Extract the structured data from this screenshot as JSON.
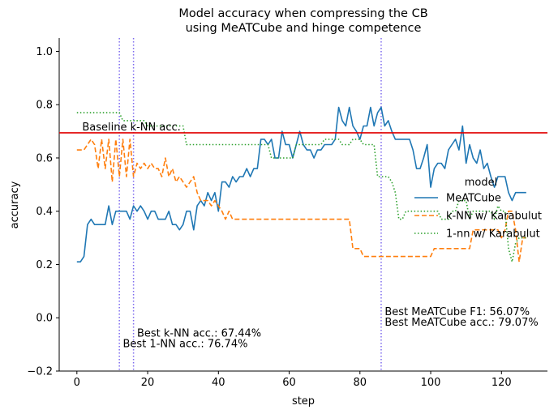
{
  "chart_data": {
    "type": "line",
    "title_line1": "Model accuracy when compressing the CB",
    "title_line2": "using MeATCube and hinge competence",
    "xlabel": "step",
    "ylabel": "accuracy",
    "xlim": [
      -5,
      133
    ],
    "ylim": [
      -0.2,
      1.05
    ],
    "xticks": [
      0,
      20,
      40,
      60,
      80,
      100,
      120
    ],
    "yticks": [
      -0.2,
      0.0,
      0.2,
      0.4,
      0.6,
      0.8,
      1.0
    ],
    "ytick_labels": [
      "−0.2",
      "0.0",
      "0.2",
      "0.4",
      "0.6",
      "0.8",
      "1.0"
    ],
    "grid": false,
    "legend": {
      "title": "model",
      "placement": "center-right",
      "entries": [
        "MeATCube",
        "k-NN w/ Karabulut",
        "1-nn w/ Karabulut"
      ]
    },
    "colors": {
      "meatcube": "#1f77b4",
      "knn": "#ff7f0e",
      "onenn": "#2ca02c",
      "baseline": "#e00000",
      "vlines": "#7b68ee"
    },
    "baseline": {
      "y": 0.6944,
      "label": "Baseline k-NN acc."
    },
    "vlines": [
      12,
      16,
      86
    ],
    "annotations": [
      {
        "x": 17,
        "y": -0.07,
        "text": "Best k-NN acc.: 67.44%"
      },
      {
        "x": 13,
        "y": -0.11,
        "text": "Best 1-NN acc.: 76.74%"
      },
      {
        "x": 87,
        "y": 0.01,
        "text": "Best MeATCube F1: 56.07%"
      },
      {
        "x": 87,
        "y": -0.03,
        "text": "Best MeATCube acc.: 79.07%"
      }
    ],
    "series": [
      {
        "name": "MeATCube",
        "key": "meatcube",
        "style": "solid",
        "x": [
          0,
          1,
          2,
          3,
          4,
          5,
          6,
          7,
          8,
          9,
          10,
          11,
          12,
          13,
          14,
          15,
          16,
          17,
          18,
          19,
          20,
          21,
          22,
          23,
          24,
          25,
          26,
          27,
          28,
          29,
          30,
          31,
          32,
          33,
          34,
          35,
          36,
          37,
          38,
          39,
          40,
          41,
          42,
          43,
          44,
          45,
          46,
          47,
          48,
          49,
          50,
          51,
          52,
          53,
          54,
          55,
          56,
          57,
          58,
          59,
          60,
          61,
          62,
          63,
          64,
          65,
          66,
          67,
          68,
          69,
          70,
          71,
          72,
          73,
          74,
          75,
          76,
          77,
          78,
          79,
          80,
          81,
          82,
          83,
          84,
          85,
          86,
          87,
          88,
          89,
          90,
          91,
          92,
          93,
          94,
          95,
          96,
          97,
          98,
          99,
          100,
          101,
          102,
          103,
          104,
          105,
          106,
          107,
          108,
          109,
          110,
          111,
          112,
          113,
          114,
          115,
          116,
          117,
          118,
          119,
          120,
          121,
          122,
          123,
          124,
          125,
          126,
          127
        ],
        "values": [
          0.21,
          0.21,
          0.23,
          0.35,
          0.37,
          0.35,
          0.35,
          0.35,
          0.35,
          0.42,
          0.35,
          0.4,
          0.4,
          0.4,
          0.4,
          0.37,
          0.42,
          0.4,
          0.42,
          0.4,
          0.37,
          0.4,
          0.4,
          0.37,
          0.37,
          0.37,
          0.4,
          0.35,
          0.35,
          0.33,
          0.35,
          0.4,
          0.4,
          0.33,
          0.42,
          0.44,
          0.42,
          0.47,
          0.44,
          0.47,
          0.4,
          0.51,
          0.51,
          0.49,
          0.53,
          0.51,
          0.53,
          0.53,
          0.56,
          0.53,
          0.56,
          0.56,
          0.67,
          0.67,
          0.65,
          0.67,
          0.6,
          0.6,
          0.7,
          0.65,
          0.65,
          0.6,
          0.65,
          0.7,
          0.65,
          0.63,
          0.63,
          0.6,
          0.63,
          0.63,
          0.65,
          0.65,
          0.65,
          0.67,
          0.79,
          0.74,
          0.72,
          0.79,
          0.72,
          0.7,
          0.67,
          0.72,
          0.72,
          0.79,
          0.72,
          0.77,
          0.79,
          0.72,
          0.74,
          0.7,
          0.67,
          0.67,
          0.67,
          0.67,
          0.67,
          0.63,
          0.56,
          0.56,
          0.6,
          0.65,
          0.49,
          0.56,
          0.58,
          0.58,
          0.56,
          0.63,
          0.65,
          0.67,
          0.63,
          0.72,
          0.58,
          0.65,
          0.6,
          0.58,
          0.63,
          0.56,
          0.58,
          0.53,
          0.49,
          0.53,
          0.53,
          0.53,
          0.47,
          0.44,
          0.47,
          0.47,
          0.47,
          0.47
        ]
      },
      {
        "name": "k-NN w/ Karabulut",
        "key": "knn",
        "style": "dashed",
        "x": [
          0,
          1,
          2,
          3,
          4,
          5,
          6,
          7,
          8,
          9,
          10,
          11,
          12,
          13,
          14,
          15,
          16,
          17,
          18,
          19,
          20,
          21,
          22,
          23,
          24,
          25,
          26,
          27,
          28,
          29,
          30,
          31,
          32,
          33,
          34,
          35,
          36,
          37,
          38,
          39,
          40,
          41,
          42,
          43,
          44,
          45,
          46,
          47,
          48,
          49,
          50,
          51,
          52,
          53,
          54,
          55,
          56,
          57,
          58,
          59,
          60,
          61,
          62,
          63,
          64,
          65,
          66,
          67,
          68,
          69,
          70,
          71,
          72,
          73,
          74,
          75,
          76,
          77,
          78,
          79,
          80,
          81,
          82,
          83,
          84,
          85,
          86,
          87,
          88,
          89,
          90,
          91,
          92,
          93,
          94,
          95,
          96,
          97,
          98,
          99,
          100,
          101,
          102,
          103,
          104,
          105,
          106,
          107,
          108,
          109,
          110,
          111,
          112,
          113,
          114,
          115,
          116,
          117,
          118,
          119,
          120,
          121,
          122,
          123,
          124,
          125,
          126,
          127
        ],
        "values": [
          0.63,
          0.63,
          0.63,
          0.65,
          0.67,
          0.65,
          0.56,
          0.67,
          0.56,
          0.67,
          0.51,
          0.67,
          0.53,
          0.67,
          0.53,
          0.67,
          0.53,
          0.58,
          0.56,
          0.58,
          0.56,
          0.58,
          0.56,
          0.56,
          0.53,
          0.6,
          0.53,
          0.56,
          0.51,
          0.53,
          0.51,
          0.49,
          0.51,
          0.53,
          0.47,
          0.44,
          0.44,
          0.44,
          0.42,
          0.44,
          0.42,
          0.4,
          0.37,
          0.4,
          0.37,
          0.37,
          0.37,
          0.37,
          0.37,
          0.37,
          0.37,
          0.37,
          0.37,
          0.37,
          0.37,
          0.37,
          0.37,
          0.37,
          0.37,
          0.37,
          0.37,
          0.37,
          0.37,
          0.37,
          0.37,
          0.37,
          0.37,
          0.37,
          0.37,
          0.37,
          0.37,
          0.37,
          0.37,
          0.37,
          0.37,
          0.37,
          0.37,
          0.37,
          0.26,
          0.26,
          0.26,
          0.23,
          0.23,
          0.23,
          0.23,
          0.23,
          0.23,
          0.23,
          0.23,
          0.23,
          0.23,
          0.23,
          0.23,
          0.23,
          0.23,
          0.23,
          0.23,
          0.23,
          0.23,
          0.23,
          0.23,
          0.26,
          0.26,
          0.26,
          0.26,
          0.26,
          0.26,
          0.26,
          0.26,
          0.26,
          0.26,
          0.26,
          0.33,
          0.33,
          0.33,
          0.33,
          0.33,
          0.33,
          0.33,
          0.33,
          0.3,
          0.33,
          0.4,
          0.4,
          0.33,
          0.21,
          0.3,
          0.3
        ]
      },
      {
        "name": "1-nn w/ Karabulut",
        "key": "onenn",
        "style": "dotted",
        "x": [
          0,
          1,
          2,
          3,
          4,
          5,
          6,
          7,
          8,
          9,
          10,
          11,
          12,
          13,
          14,
          15,
          16,
          17,
          18,
          19,
          20,
          21,
          22,
          23,
          24,
          25,
          26,
          27,
          28,
          29,
          30,
          31,
          32,
          33,
          34,
          35,
          36,
          37,
          38,
          39,
          40,
          41,
          42,
          43,
          44,
          45,
          46,
          47,
          48,
          49,
          50,
          51,
          52,
          53,
          54,
          55,
          56,
          57,
          58,
          59,
          60,
          61,
          62,
          63,
          64,
          65,
          66,
          67,
          68,
          69,
          70,
          71,
          72,
          73,
          74,
          75,
          76,
          77,
          78,
          79,
          80,
          81,
          82,
          83,
          84,
          85,
          86,
          87,
          88,
          89,
          90,
          91,
          92,
          93,
          94,
          95,
          96,
          97,
          98,
          99,
          100,
          101,
          102,
          103,
          104,
          105,
          106,
          107,
          108,
          109,
          110,
          111,
          112,
          113,
          114,
          115,
          116,
          117,
          118,
          119,
          120,
          121,
          122,
          123,
          124,
          125,
          126,
          127
        ],
        "values": [
          0.77,
          0.77,
          0.77,
          0.77,
          0.77,
          0.77,
          0.77,
          0.77,
          0.77,
          0.77,
          0.77,
          0.77,
          0.77,
          0.74,
          0.74,
          0.74,
          0.74,
          0.74,
          0.74,
          0.74,
          0.72,
          0.72,
          0.72,
          0.72,
          0.72,
          0.72,
          0.72,
          0.72,
          0.72,
          0.72,
          0.72,
          0.65,
          0.65,
          0.65,
          0.65,
          0.65,
          0.65,
          0.65,
          0.65,
          0.65,
          0.65,
          0.65,
          0.65,
          0.65,
          0.65,
          0.65,
          0.65,
          0.65,
          0.65,
          0.65,
          0.65,
          0.65,
          0.65,
          0.65,
          0.65,
          0.6,
          0.6,
          0.6,
          0.6,
          0.6,
          0.6,
          0.6,
          0.65,
          0.65,
          0.65,
          0.65,
          0.65,
          0.65,
          0.65,
          0.65,
          0.67,
          0.67,
          0.67,
          0.67,
          0.67,
          0.65,
          0.65,
          0.65,
          0.67,
          0.67,
          0.67,
          0.65,
          0.65,
          0.65,
          0.65,
          0.53,
          0.53,
          0.53,
          0.53,
          0.51,
          0.47,
          0.37,
          0.37,
          0.4,
          0.4,
          0.4,
          0.4,
          0.4,
          0.4,
          0.4,
          0.4,
          0.4,
          0.4,
          0.37,
          0.37,
          0.37,
          0.4,
          0.4,
          0.44,
          0.44,
          0.44,
          0.37,
          0.4,
          0.4,
          0.4,
          0.4,
          0.4,
          0.4,
          0.37,
          0.42,
          0.4,
          0.4,
          0.26,
          0.21,
          0.28,
          0.3,
          0.3,
          0.3
        ]
      }
    ]
  }
}
